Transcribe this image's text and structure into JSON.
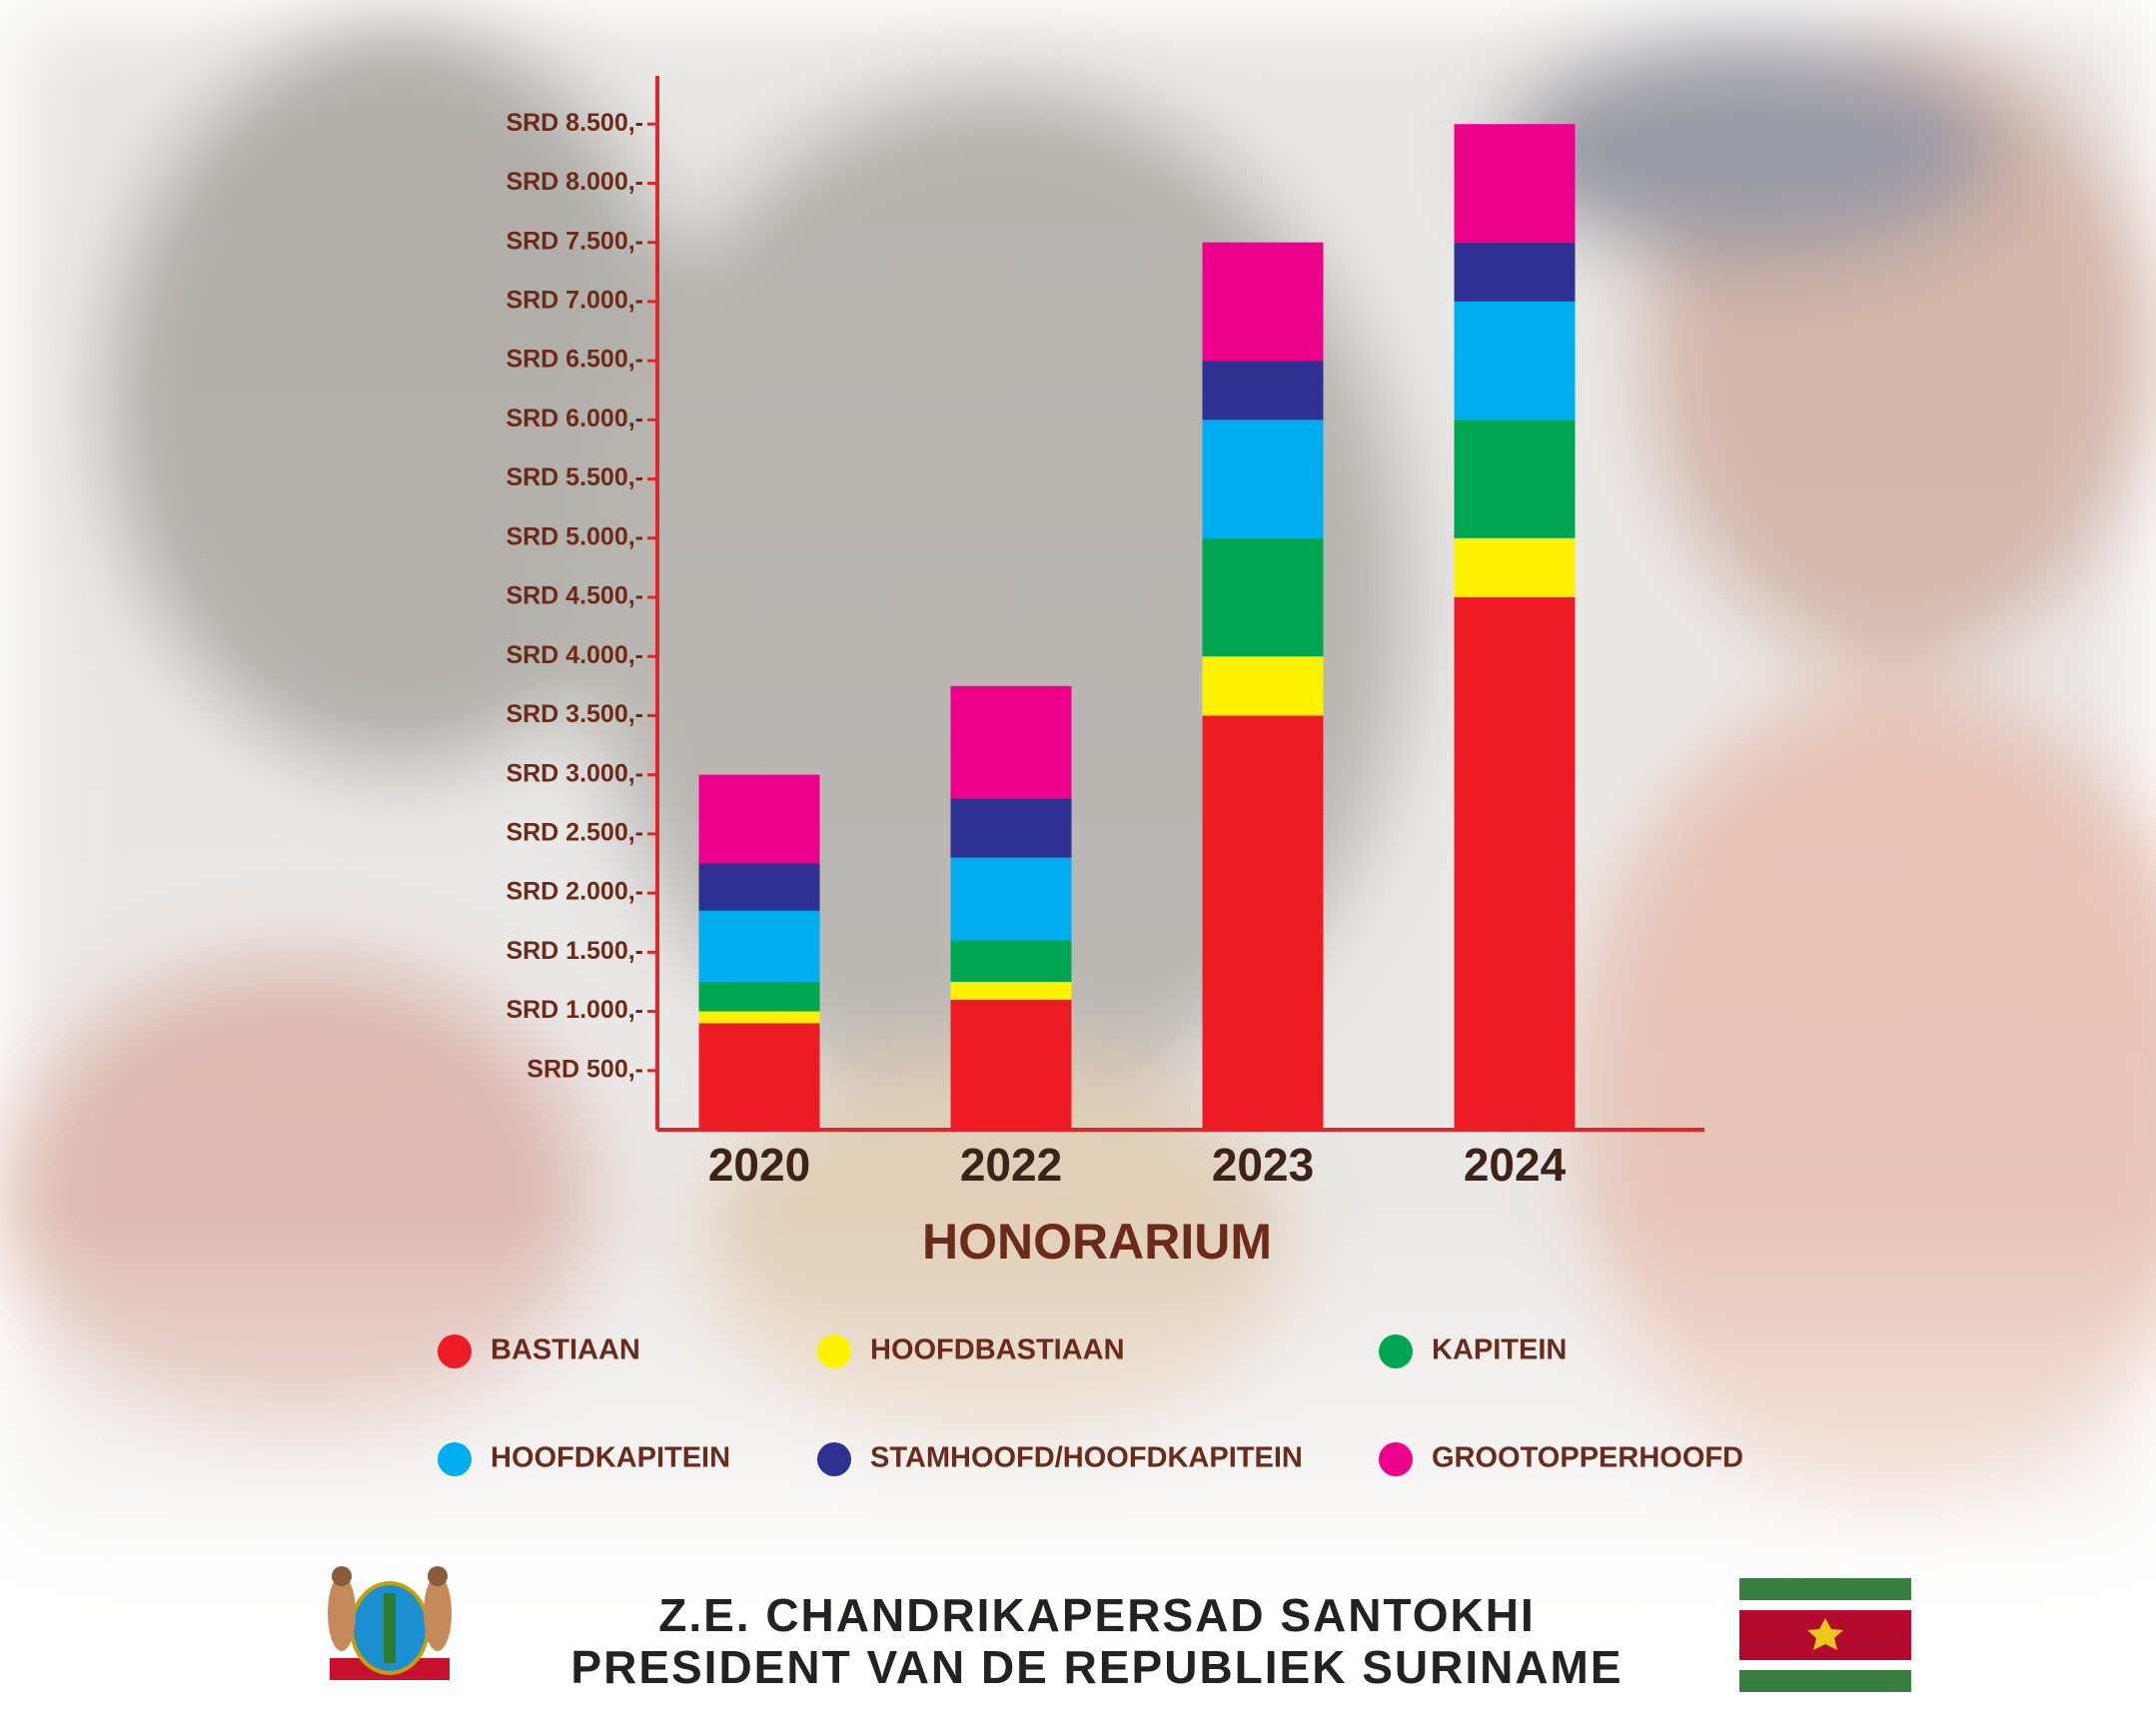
{
  "chart_data": {
    "type": "stacked_bar",
    "xlabel": "HONORARIUM",
    "categories": [
      "2020",
      "2022",
      "2023",
      "2024"
    ],
    "series": [
      {
        "name": "BASTIAAN",
        "color": "#ed1c24",
        "values": [
          900,
          1100,
          3500,
          4500
        ]
      },
      {
        "name": "HOOFDBASTIAAN",
        "color": "#fff200",
        "values": [
          100,
          150,
          500,
          500
        ]
      },
      {
        "name": "KAPITEIN",
        "color": "#00a651",
        "values": [
          250,
          350,
          1000,
          1000
        ]
      },
      {
        "name": "HOOFDKAPITEIN",
        "color": "#00aeef",
        "values": [
          600,
          700,
          1000,
          1000
        ]
      },
      {
        "name": "STAMHOOFD/HOOFDKAPITEIN",
        "color": "#2e3192",
        "values": [
          400,
          500,
          500,
          500
        ]
      },
      {
        "name": "GROOTOPPERHOOFD",
        "color": "#ec008c",
        "values": [
          750,
          950,
          1000,
          1000
        ]
      }
    ],
    "ylim": [
      0,
      9000
    ],
    "yticks": [
      {
        "value": 500,
        "label": "SRD 500,-"
      },
      {
        "value": 1000,
        "label": "SRD 1.000,-"
      },
      {
        "value": 1500,
        "label": "SRD 1.500,-"
      },
      {
        "value": 2000,
        "label": "SRD 2.000,-"
      },
      {
        "value": 2500,
        "label": "SRD 2.500,-"
      },
      {
        "value": 3000,
        "label": "SRD 3.000,-"
      },
      {
        "value": 3500,
        "label": "SRD 3.500,-"
      },
      {
        "value": 4000,
        "label": "SRD 4.000,-"
      },
      {
        "value": 4500,
        "label": "SRD 4.500,-"
      },
      {
        "value": 5000,
        "label": "SRD 5.000,-"
      },
      {
        "value": 5500,
        "label": "SRD 5.500,-"
      },
      {
        "value": 6000,
        "label": "SRD 6.000,-"
      },
      {
        "value": 6500,
        "label": "SRD 6.500,-"
      },
      {
        "value": 7000,
        "label": "SRD 7.000,-"
      },
      {
        "value": 7500,
        "label": "SRD 7.500,-"
      },
      {
        "value": 8000,
        "label": "SRD 8.000,-"
      },
      {
        "value": 8500,
        "label": "SRD 8.500,-"
      }
    ],
    "grid": false
  },
  "footer": {
    "line1": "Z.E. CHANDRIKAPERSAD SANTOKHI",
    "line2": "PRESIDENT VAN DE REPUBLIEK SURINAME"
  }
}
